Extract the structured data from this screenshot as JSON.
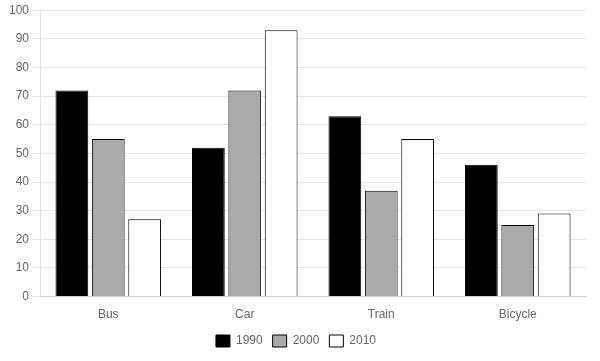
{
  "chart_data": {
    "type": "bar",
    "categories": [
      "Bus",
      "Car",
      "Train",
      "Bicycle"
    ],
    "series": [
      {
        "name": "1990",
        "color": "#000000",
        "values": [
          72,
          52,
          63,
          46
        ]
      },
      {
        "name": "2000",
        "color": "#aaaaaa",
        "values": [
          55,
          72,
          37,
          25
        ]
      },
      {
        "name": "2010",
        "color": "#ffffff",
        "values": [
          27,
          93,
          55,
          29
        ]
      }
    ],
    "ylim": [
      0,
      100
    ],
    "yticks": [
      0,
      10,
      20,
      30,
      40,
      50,
      60,
      70,
      80,
      90,
      100
    ],
    "grid": true,
    "legend": "bottom"
  }
}
